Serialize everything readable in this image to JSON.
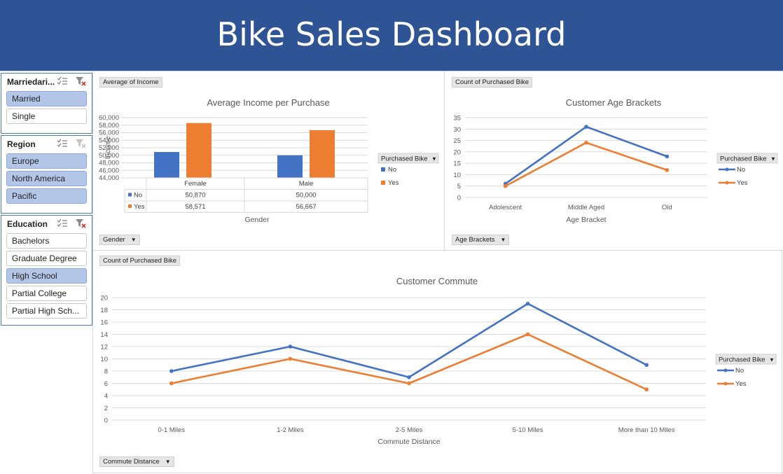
{
  "title": "Bike Sales Dashboard",
  "slicers": {
    "marital": {
      "title": "Marriedari...",
      "items": [
        {
          "label": "Married",
          "selected": true
        },
        {
          "label": "Single",
          "selected": false
        }
      ]
    },
    "region": {
      "title": "Region",
      "items": [
        {
          "label": "Europe",
          "selected": true
        },
        {
          "label": "North America",
          "selected": true
        },
        {
          "label": "Pacific",
          "selected": true
        }
      ]
    },
    "education": {
      "title": "Education",
      "items": [
        {
          "label": "Bachelors",
          "selected": false
        },
        {
          "label": "Graduate Degree",
          "selected": false
        },
        {
          "label": "High School",
          "selected": true
        },
        {
          "label": "Partial College",
          "selected": false
        },
        {
          "label": "Partial High Sch...",
          "selected": false
        }
      ]
    }
  },
  "income_chart": {
    "field_value": "Average of Income",
    "field_axis": "Gender",
    "legend_field": "Purchased Bike",
    "table_rows": [
      "No",
      "Yes"
    ]
  },
  "age_chart": {
    "field_value": "Count of Purchased Bike",
    "field_axis": "Age Brackets",
    "legend_field": "Purchased Bike"
  },
  "commute_chart": {
    "field_value": "Count of Purchased Bike",
    "field_axis": "Commute Distance",
    "legend_field": "Purchased Bike"
  },
  "colors": {
    "no": "#4472c4",
    "yes": "#ed7d31",
    "banner": "#2e5496",
    "slicer_selected": "#b4c6e7"
  },
  "chart_data": [
    {
      "type": "bar",
      "title": "Average Income per Purchase",
      "xlabel": "Gender",
      "ylabel": "Income",
      "categories": [
        "Female",
        "Male"
      ],
      "series": [
        {
          "name": "No",
          "values": [
            50870,
            50000
          ],
          "labels": [
            "50,870",
            "50,000"
          ]
        },
        {
          "name": "Yes",
          "values": [
            58571,
            56667
          ],
          "labels": [
            "58,571",
            "56,667"
          ]
        }
      ],
      "ylim": [
        44000,
        60000
      ],
      "yticks": [
        "44,000",
        "46,000",
        "48,000",
        "50,000",
        "52,000",
        "54,000",
        "56,000",
        "58,000",
        "60,000"
      ],
      "legend": "right",
      "grid": true
    },
    {
      "type": "line",
      "title": "Customer Age Brackets",
      "xlabel": "Age Bracket",
      "ylabel": "",
      "categories": [
        "Adolescent",
        "Middle Aged",
        "Old"
      ],
      "series": [
        {
          "name": "No",
          "values": [
            6,
            31,
            18
          ]
        },
        {
          "name": "Yes",
          "values": [
            5,
            24,
            12
          ]
        }
      ],
      "ylim": [
        0,
        35
      ],
      "yticks": [
        "0",
        "5",
        "10",
        "15",
        "20",
        "25",
        "30",
        "35"
      ],
      "legend": "right",
      "grid": true
    },
    {
      "type": "line",
      "title": "Customer Commute",
      "xlabel": "Commute Distance",
      "ylabel": "",
      "categories": [
        "0-1 Miles",
        "1-2 Miles",
        "2-5 Miles",
        "5-10 Miles",
        "More than 10 Miles"
      ],
      "series": [
        {
          "name": "No",
          "values": [
            8,
            12,
            7,
            19,
            9
          ]
        },
        {
          "name": "Yes",
          "values": [
            6,
            10,
            6,
            14,
            5
          ]
        }
      ],
      "ylim": [
        0,
        20
      ],
      "yticks": [
        "0",
        "2",
        "4",
        "6",
        "8",
        "10",
        "12",
        "14",
        "16",
        "18",
        "20"
      ],
      "legend": "right",
      "grid": true
    }
  ]
}
